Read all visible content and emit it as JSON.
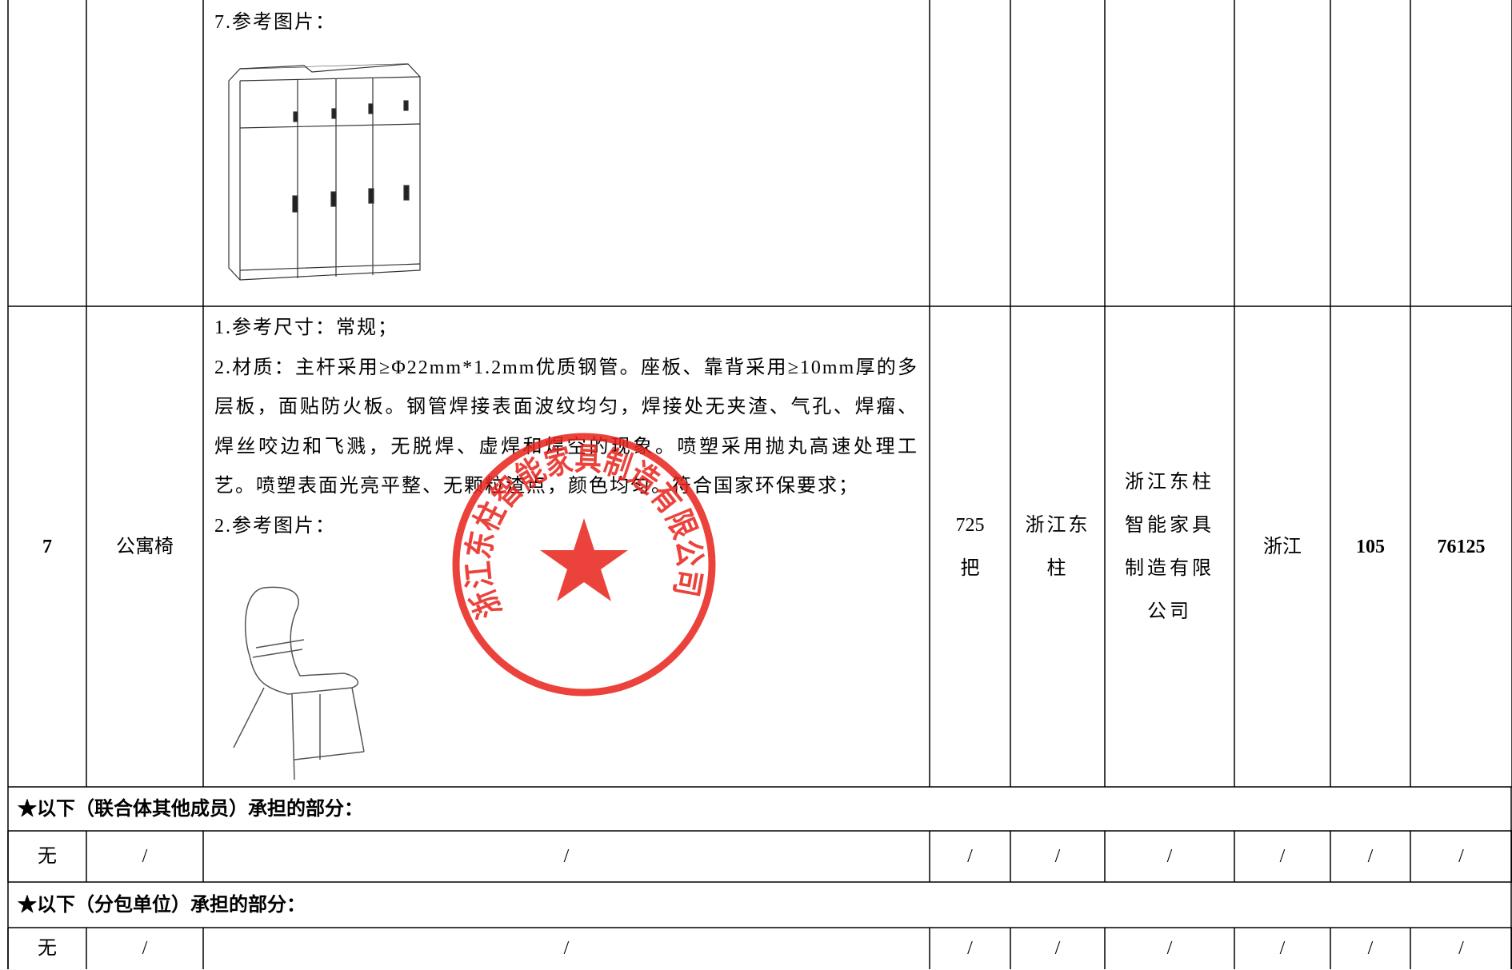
{
  "rows": [
    {
      "description": [
        "7.参考图片："
      ]
    },
    {
      "no": "7",
      "name": "公寓椅",
      "description": [
        "1.参考尺寸：常规；",
        "2.材质：主杆采用≥Φ22mm*1.2mm优质钢管。座板、靠背采用≥10mm厚的多层板，面贴防火板。钢管焊接表面波纹均匀，焊接处无夹渣、气孔、焊瘤、焊丝咬边和飞溅，无脱焊、虚焊和焊空的现象。喷塑采用抛丸高速处理工艺。喷塑表面光亮平整、无颗粒渣点，颜色均匀。符合国家环保要求；",
        "2.参考图片："
      ],
      "quantity": "725 把",
      "brand": "浙江东柱",
      "manufacturer": "浙江东柱智能家具制造有限公司",
      "origin": "浙江",
      "unit_price": "105",
      "total": "76125"
    }
  ],
  "sections": [
    {
      "heading": "★以下（联合体其他成员）承担的部分：",
      "cells": [
        "无",
        "/",
        "/",
        "/",
        "/",
        "/",
        "/",
        "/",
        "/"
      ]
    },
    {
      "heading": "★以下（分包单位）承担的部分：",
      "cells": [
        "无",
        "/",
        "/",
        "/",
        "/",
        "/",
        "/",
        "/",
        "/"
      ]
    }
  ],
  "stamp": {
    "text": "浙江东柱智能家具制造有限公司"
  }
}
